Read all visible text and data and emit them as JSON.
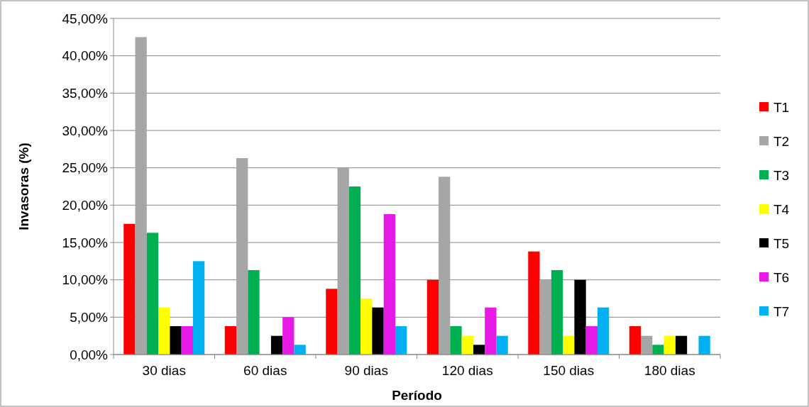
{
  "chart_data": {
    "type": "bar",
    "xlabel": "Período",
    "ylabel": "Invasoras (%)",
    "categories": [
      "30 dias",
      "60 dias",
      "90 dias",
      "120 dias",
      "150 dias",
      "180 dias"
    ],
    "series": [
      {
        "name": "T1",
        "color": "#ff0000",
        "values": [
          17.5,
          3.8,
          8.8,
          10,
          13.8,
          3.8
        ]
      },
      {
        "name": "T2",
        "color": "#a6a6a6",
        "values": [
          42.5,
          26.3,
          25,
          23.8,
          10,
          2.5
        ]
      },
      {
        "name": "T3",
        "color": "#00b050",
        "values": [
          16.3,
          11.3,
          22.5,
          3.8,
          11.3,
          1.3
        ]
      },
      {
        "name": "T4",
        "color": "#ffff00",
        "values": [
          6.3,
          0,
          7.5,
          2.5,
          2.5,
          2.5
        ]
      },
      {
        "name": "T5",
        "color": "#000000",
        "values": [
          3.8,
          2.5,
          6.3,
          1.3,
          10,
          2.5
        ]
      },
      {
        "name": "T6",
        "color": "#e619e6",
        "values": [
          3.8,
          5,
          18.8,
          6.3,
          3.8,
          0
        ]
      },
      {
        "name": "T7",
        "color": "#00b0f0",
        "values": [
          12.5,
          1.3,
          3.8,
          2.5,
          6.3,
          2.5
        ]
      }
    ],
    "ylim": [
      0,
      45
    ],
    "yticks": [
      {
        "value": 0,
        "label": "0,00%"
      },
      {
        "value": 5,
        "label": "5,00%"
      },
      {
        "value": 10,
        "label": "10,00%"
      },
      {
        "value": 15,
        "label": "15,00%"
      },
      {
        "value": 20,
        "label": "20,00%"
      },
      {
        "value": 25,
        "label": "25,00%"
      },
      {
        "value": 30,
        "label": "30,00%"
      },
      {
        "value": 35,
        "label": "35,00%"
      },
      {
        "value": 40,
        "label": "40,00%"
      },
      {
        "value": 45,
        "label": "45,00%"
      }
    ],
    "grid": "y",
    "legend": "right"
  }
}
